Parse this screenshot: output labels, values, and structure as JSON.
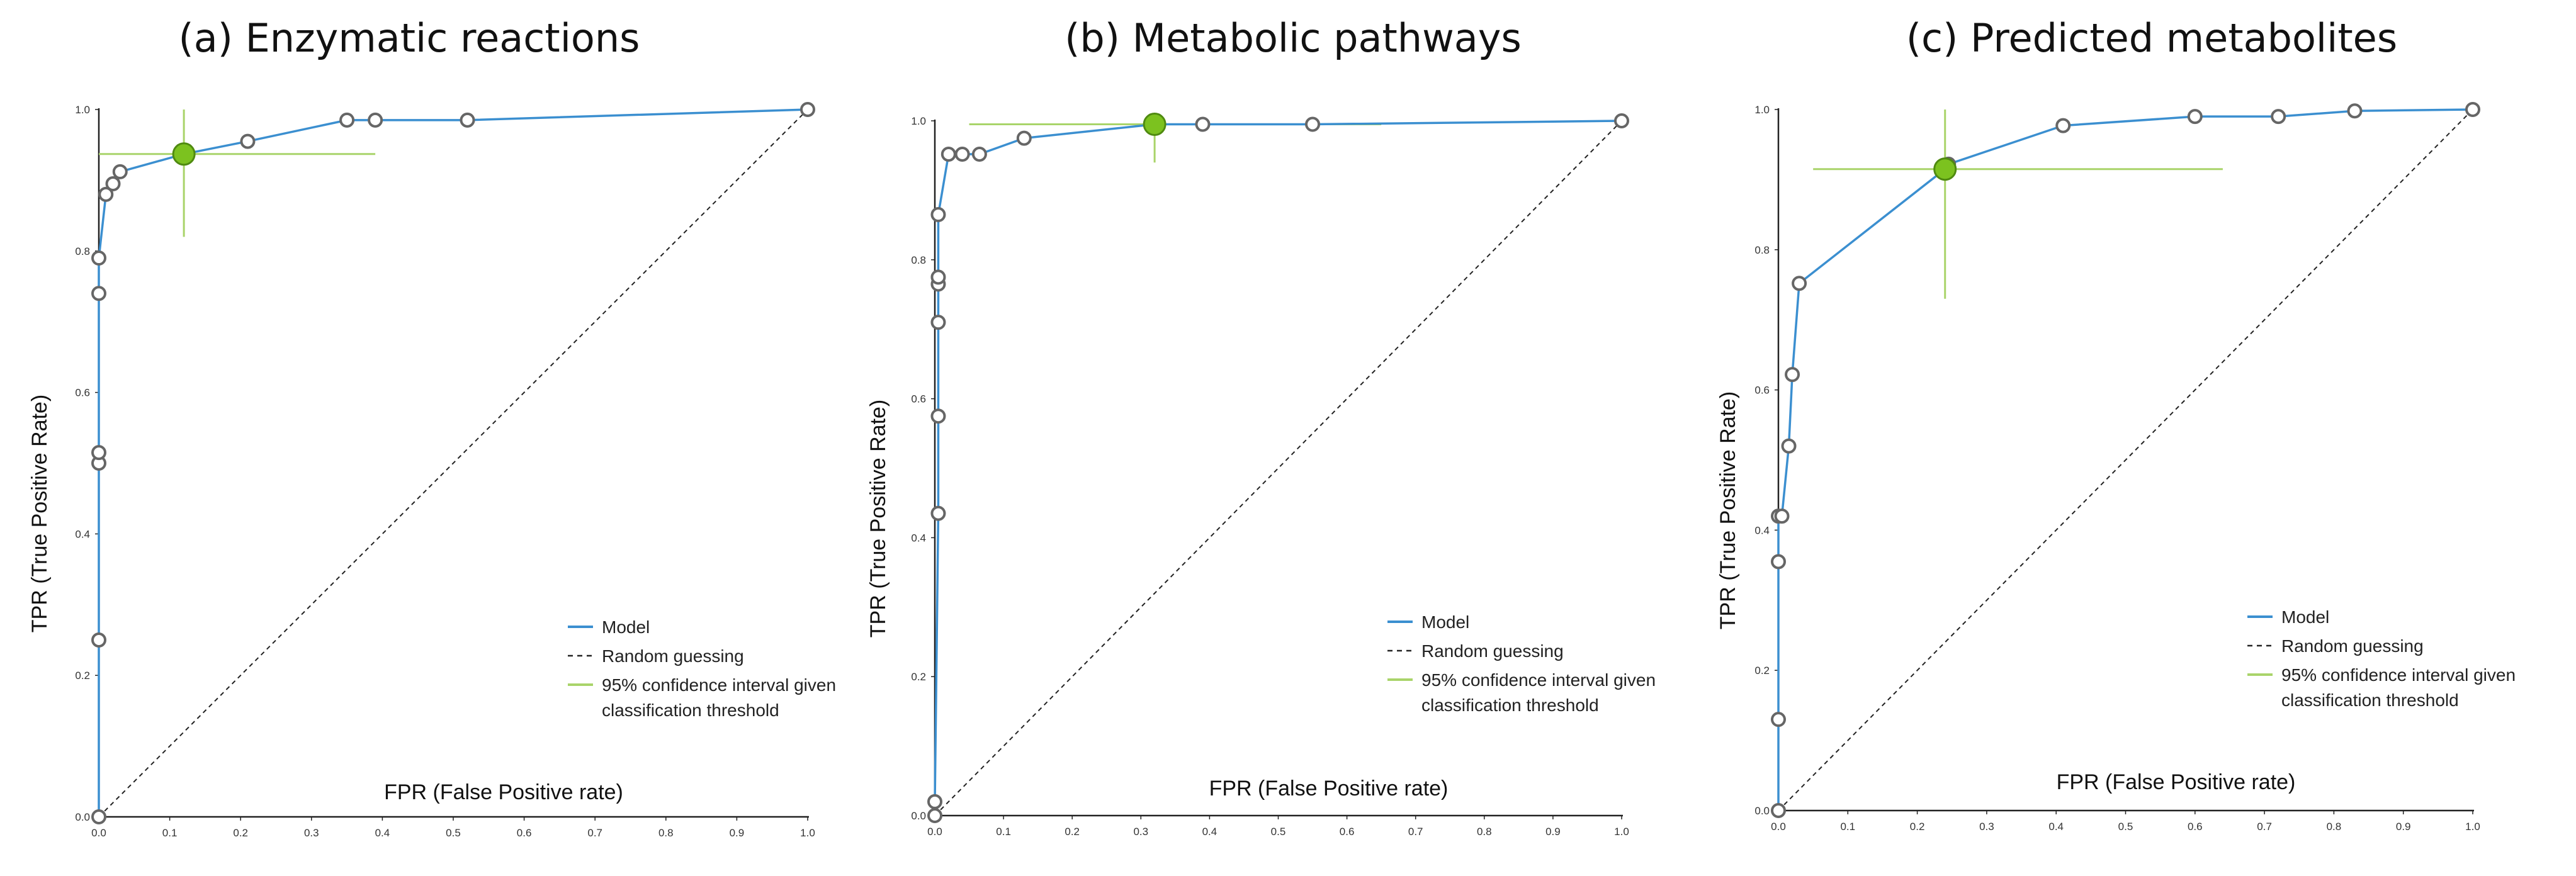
{
  "colors": {
    "model": "#3b8fd0",
    "ci": "#a9d46a",
    "point_fill": "#ffffff",
    "point_stroke": "#666666",
    "highlight": "#7cc21f",
    "highlight_stroke": "#4f8a10",
    "random": "#222222",
    "axis": "#222222"
  },
  "chart_data": [
    {
      "type": "line",
      "title": "(a) Enzymatic reactions",
      "xlabel": "FPR (False Positive rate)",
      "ylabel": "TPR (True Positive Rate)",
      "xlim": [
        0,
        1
      ],
      "ylim": [
        0,
        1
      ],
      "xticks": [
        "0.0",
        "0.1",
        "0.2",
        "0.3",
        "0.4",
        "0.5",
        "0.6",
        "0.7",
        "0.8",
        "0.9",
        "1.0"
      ],
      "yticks": [
        "0.0",
        "0.2",
        "0.4",
        "0.6",
        "0.8",
        "1.0"
      ],
      "legend": [
        "Model",
        "Random guessing",
        "95% confidence interval given",
        "classification threshold"
      ],
      "series": [
        {
          "name": "Model",
          "x": [
            0.0,
            0.0,
            0.0,
            0.0,
            0.0,
            0.0,
            0.01,
            0.02,
            0.03,
            0.12,
            0.21,
            0.35,
            0.39,
            0.52,
            1.0
          ],
          "y": [
            0.0,
            0.25,
            0.5,
            0.515,
            0.74,
            0.79,
            0.88,
            0.895,
            0.912,
            0.937,
            0.955,
            0.985,
            0.985,
            0.985,
            1.0
          ]
        },
        {
          "name": "Random guessing",
          "x": [
            0,
            1
          ],
          "y": [
            0,
            1
          ]
        }
      ],
      "operating_point": {
        "x": 0.12,
        "y": 0.937,
        "ci_x": [
          0.0,
          0.39
        ],
        "ci_y": [
          0.82,
          1.0
        ]
      }
    },
    {
      "type": "line",
      "title": "(b) Metabolic pathways",
      "xlabel": "FPR (False Positive rate)",
      "ylabel": "TPR (True Positive Rate)",
      "xlim": [
        0,
        1
      ],
      "ylim": [
        0,
        1
      ],
      "xticks": [
        "0.0",
        "0.1",
        "0.2",
        "0.3",
        "0.4",
        "0.5",
        "0.6",
        "0.7",
        "0.8",
        "0.9",
        "1.0"
      ],
      "yticks": [
        "0.0",
        "0.2",
        "0.4",
        "0.6",
        "0.8",
        "1.0"
      ],
      "legend": [
        "Model",
        "Random guessing",
        "95% confidence interval given",
        "classification threshold"
      ],
      "series": [
        {
          "name": "Model",
          "x": [
            0.0,
            0.0,
            0.005,
            0.005,
            0.005,
            0.005,
            0.005,
            0.005,
            0.02,
            0.04,
            0.065,
            0.13,
            0.32,
            0.39,
            0.55,
            1.0
          ],
          "y": [
            0.0,
            0.02,
            0.435,
            0.575,
            0.71,
            0.765,
            0.775,
            0.865,
            0.952,
            0.952,
            0.952,
            0.975,
            0.995,
            0.995,
            0.995,
            1.0
          ]
        },
        {
          "name": "Random guessing",
          "x": [
            0,
            1
          ],
          "y": [
            0,
            1
          ]
        }
      ],
      "operating_point": {
        "x": 0.32,
        "y": 0.995,
        "ci_x": [
          0.05,
          0.65
        ],
        "ci_y": [
          0.94,
          1.0
        ]
      }
    },
    {
      "type": "line",
      "title": "(c) Predicted metabolites",
      "xlabel": "FPR (False Positive rate)",
      "ylabel": "TPR (True Positive Rate)",
      "xlim": [
        0,
        1
      ],
      "ylim": [
        0,
        1
      ],
      "xticks": [
        "0.0",
        "0.1",
        "0.2",
        "0.3",
        "0.4",
        "0.5",
        "0.6",
        "0.7",
        "0.8",
        "0.9",
        "1.0"
      ],
      "yticks": [
        "0.0",
        "0.2",
        "0.4",
        "0.6",
        "0.8",
        "1.0"
      ],
      "legend": [
        "Model",
        "Random guessing",
        "95% confidence interval given",
        "classification threshold"
      ],
      "series": [
        {
          "name": "Model",
          "x": [
            0.0,
            0.0,
            0.0,
            0.0,
            0.005,
            0.015,
            0.02,
            0.03,
            0.24,
            0.245,
            0.41,
            0.6,
            0.72,
            0.83,
            1.0
          ],
          "y": [
            0.0,
            0.13,
            0.355,
            0.42,
            0.42,
            0.52,
            0.622,
            0.752,
            0.915,
            0.922,
            0.977,
            0.99,
            0.99,
            0.998,
            1.0
          ]
        },
        {
          "name": "Random guessing",
          "x": [
            0,
            1
          ],
          "y": [
            0,
            1
          ]
        }
      ],
      "operating_point": {
        "x": 0.24,
        "y": 0.915,
        "ci_x": [
          0.05,
          0.64
        ],
        "ci_y": [
          0.73,
          1.0
        ]
      }
    }
  ]
}
